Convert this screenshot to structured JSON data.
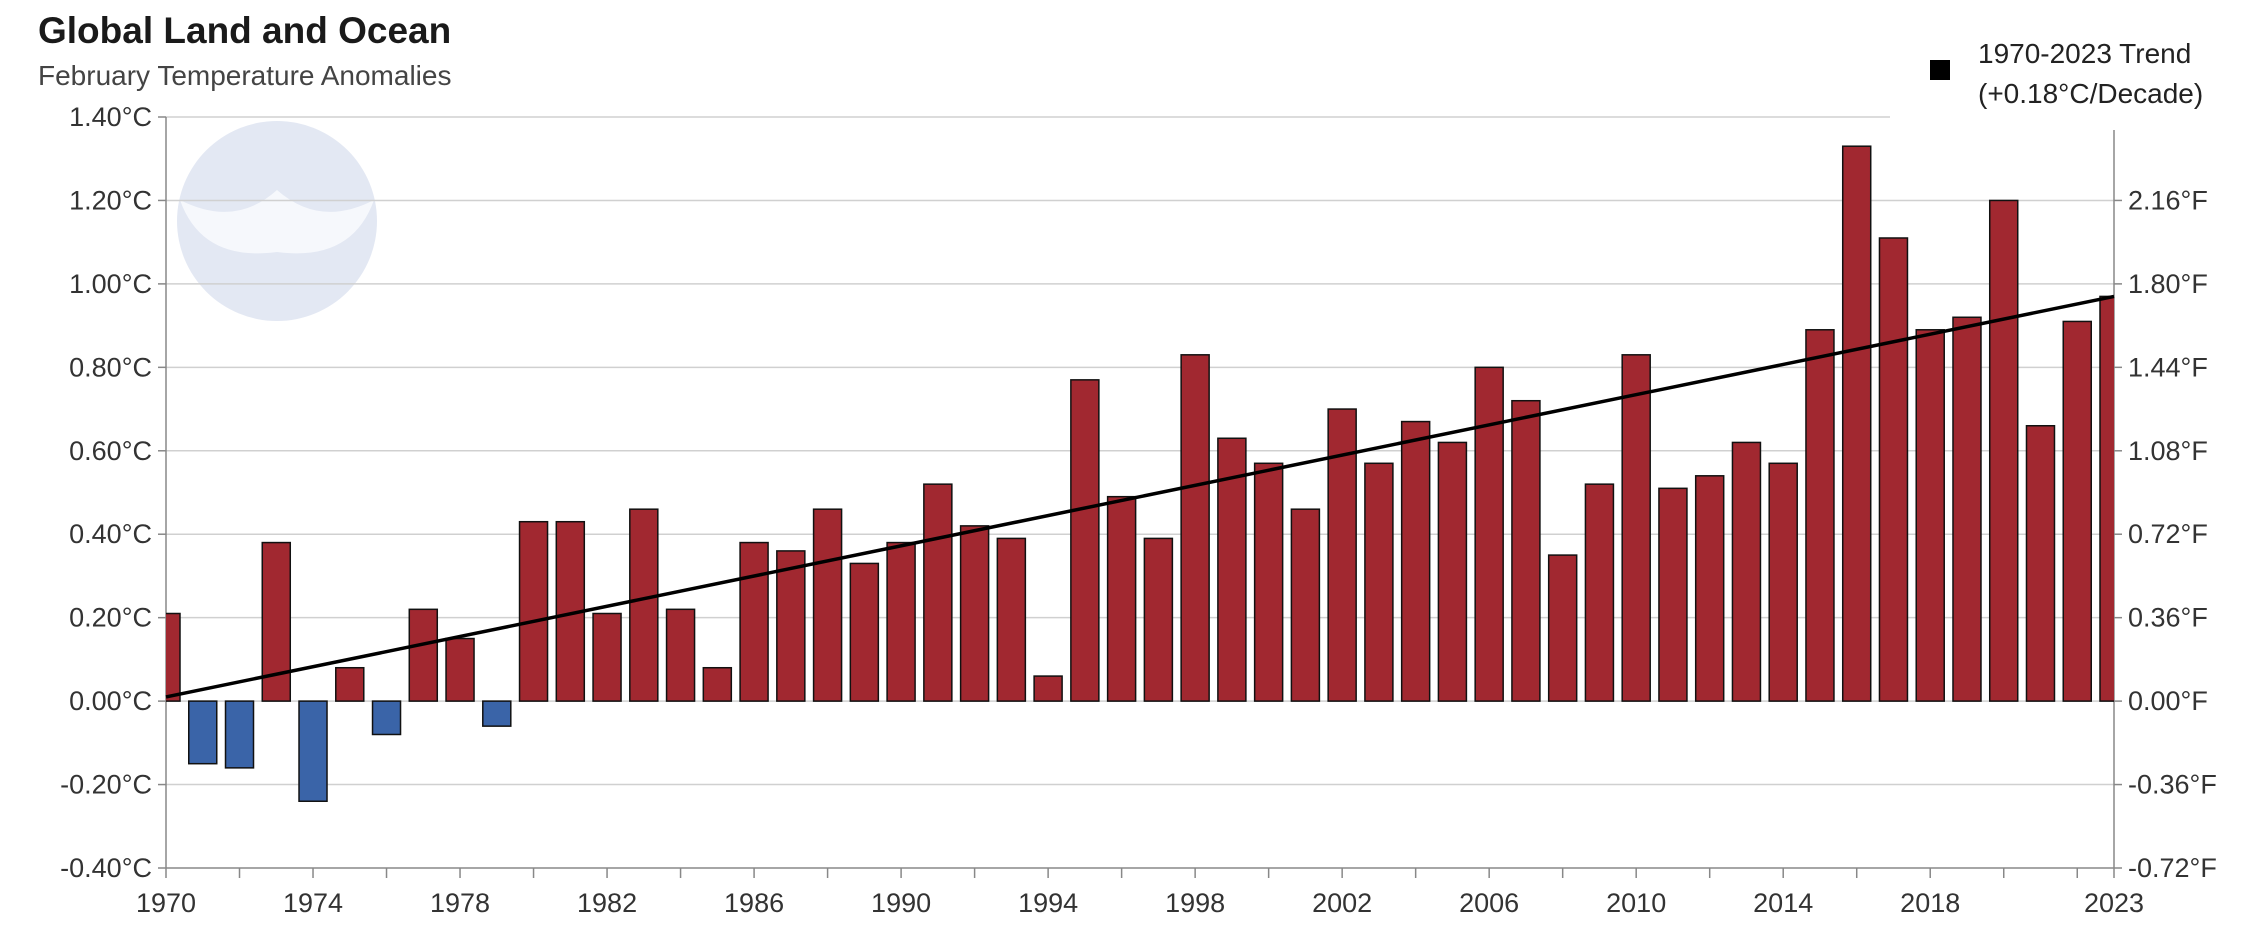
{
  "chart_data": {
    "type": "bar",
    "title": "Global Land and Ocean",
    "subtitle": "February Temperature Anomalies",
    "x": [
      1970,
      1971,
      1972,
      1973,
      1974,
      1975,
      1976,
      1977,
      1978,
      1979,
      1980,
      1981,
      1982,
      1983,
      1984,
      1985,
      1986,
      1987,
      1988,
      1989,
      1990,
      1991,
      1992,
      1993,
      1994,
      1995,
      1996,
      1997,
      1998,
      1999,
      2000,
      2001,
      2002,
      2003,
      2004,
      2005,
      2006,
      2007,
      2008,
      2009,
      2010,
      2011,
      2012,
      2013,
      2014,
      2015,
      2016,
      2017,
      2018,
      2019,
      2020,
      2021,
      2022,
      2023
    ],
    "values": [
      0.21,
      -0.15,
      -0.16,
      0.38,
      -0.24,
      0.08,
      -0.08,
      0.22,
      0.15,
      -0.06,
      0.43,
      0.43,
      0.21,
      0.46,
      0.22,
      0.08,
      0.38,
      0.36,
      0.46,
      0.33,
      0.38,
      0.52,
      0.42,
      0.39,
      0.06,
      0.77,
      0.49,
      0.39,
      0.83,
      0.63,
      0.57,
      0.46,
      0.7,
      0.57,
      0.67,
      0.62,
      0.8,
      0.72,
      0.35,
      0.52,
      0.83,
      0.51,
      0.54,
      0.62,
      0.57,
      0.89,
      1.33,
      1.11,
      0.89,
      0.92,
      1.2,
      0.66,
      0.91,
      0.97
    ],
    "ylim": [
      -0.4,
      1.4
    ],
    "yticks": [
      "-0.40°C",
      "-0.20°C",
      "0.00°C",
      "0.20°C",
      "0.40°C",
      "0.60°C",
      "0.80°C",
      "1.00°C",
      "1.20°C",
      "1.40°C"
    ],
    "yticks_right": [
      "-0.72°F",
      "-0.36°F",
      "0.00°F",
      "0.36°F",
      "0.72°F",
      "1.08°F",
      "1.44°F",
      "1.80°F",
      "2.16°F"
    ],
    "xtick_labels": [
      "1970",
      "1974",
      "1978",
      "1982",
      "1986",
      "1990",
      "1994",
      "1998",
      "2002",
      "2006",
      "2010",
      "2014",
      "2018",
      "2023"
    ],
    "trend": {
      "label_line1": "1970-2023 Trend",
      "label_line2": "(+0.18°C/Decade)",
      "start": 0.01,
      "end": 0.97
    },
    "colors": {
      "positive": "#a12830",
      "negative": "#3a64a8",
      "trend": "#000000",
      "grid": "#d0d0d0"
    },
    "grid": true,
    "legend_position": "top-right"
  }
}
